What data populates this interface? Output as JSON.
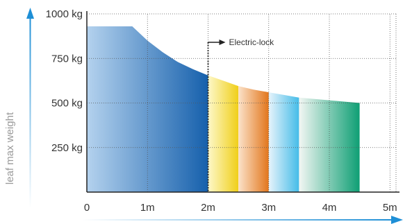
{
  "chart_data": {
    "type": "area",
    "xlabel": "",
    "ylabel": "leaf max weight",
    "x_ticks": [
      {
        "value": 0,
        "label": "0"
      },
      {
        "value": 1,
        "label": "1m"
      },
      {
        "value": 2,
        "label": "2m"
      },
      {
        "value": 3,
        "label": "3m"
      },
      {
        "value": 4,
        "label": "4m"
      },
      {
        "value": 5,
        "label": "5m"
      }
    ],
    "y_ticks": [
      {
        "value": 250,
        "label": "250 kg"
      },
      {
        "value": 500,
        "label": "500 kg"
      },
      {
        "value": 750,
        "label": "750 kg"
      },
      {
        "value": 1000,
        "label": "1000 kg"
      }
    ],
    "xlim": [
      0,
      5.1
    ],
    "ylim": [
      0,
      1000
    ],
    "grid": true,
    "curve": [
      {
        "x": 0,
        "y": 930
      },
      {
        "x": 0.75,
        "y": 930
      },
      {
        "x": 1.0,
        "y": 850
      },
      {
        "x": 1.25,
        "y": 785
      },
      {
        "x": 1.5,
        "y": 730
      },
      {
        "x": 1.75,
        "y": 690
      },
      {
        "x": 2.0,
        "y": 655
      },
      {
        "x": 2.25,
        "y": 625
      },
      {
        "x": 2.5,
        "y": 595
      },
      {
        "x": 2.75,
        "y": 575
      },
      {
        "x": 3.0,
        "y": 560
      },
      {
        "x": 3.25,
        "y": 545
      },
      {
        "x": 3.5,
        "y": 530
      },
      {
        "x": 4.0,
        "y": 515
      },
      {
        "x": 4.5,
        "y": 500
      }
    ],
    "segments": [
      {
        "x0": 0,
        "x1": 2.0,
        "color_start": "#b4d2ee",
        "color_end": "#1660ac"
      },
      {
        "x0": 2.0,
        "x1": 2.5,
        "color_start": "#fdf8c9",
        "color_end": "#f0cf1a"
      },
      {
        "x0": 2.5,
        "x1": 3.0,
        "color_start": "#fbe2c9",
        "color_end": "#e2761c"
      },
      {
        "x0": 3.0,
        "x1": 3.5,
        "color_start": "#e6f3fb",
        "color_end": "#45bce8"
      },
      {
        "x0": 3.5,
        "x1": 4.5,
        "color_start": "#f2f6f3",
        "color_end": "#0e9f74"
      }
    ],
    "annotation": {
      "text": "Electric-lock",
      "x": 2.0
    },
    "axis_arrow_color": "#1e8fd6"
  }
}
